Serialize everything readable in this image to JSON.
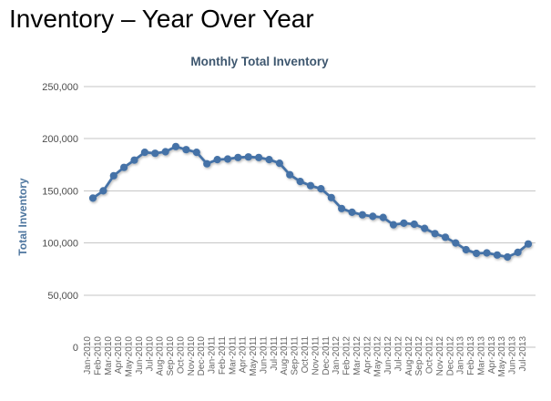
{
  "page": {
    "title": "Inventory – Year Over Year"
  },
  "chart_data": {
    "type": "line",
    "title": "Monthly Total Inventory",
    "xlabel": "",
    "ylabel": "Total Inventory",
    "series_name": "Total Inventory",
    "categories": [
      "Jan-2010",
      "Feb-2010",
      "Mar-2010",
      "Apr-2010",
      "May-2010",
      "Jun-2010",
      "Jul-2010",
      "Aug-2010",
      "Sep-2010",
      "Oct-2010",
      "Nov-2010",
      "Dec-2010",
      "Jan-2011",
      "Feb-2011",
      "Mar-2011",
      "Apr-2011",
      "May-2011",
      "Jun-2011",
      "Jul-2011",
      "Aug-2011",
      "Sep-2011",
      "Oct-2011",
      "Nov-2011",
      "Dec-2011",
      "Jan-2012",
      "Feb-2012",
      "Mar-2012",
      "Apr-2012",
      "May-2012",
      "Jun-2012",
      "Jul-2012",
      "Aug-2012",
      "Sep-2012",
      "Oct-2012",
      "Nov-2012",
      "Dec-2012",
      "Jan-2013",
      "Feb-2013",
      "Mar-2013",
      "Apr-2013",
      "May-2013",
      "Jun-2013",
      "Jul-2013"
    ],
    "values": [
      143000,
      150000,
      164500,
      172500,
      179500,
      187000,
      186000,
      187500,
      192500,
      189500,
      187000,
      176000,
      180000,
      180500,
      182000,
      182500,
      182000,
      180000,
      176500,
      165500,
      159000,
      155000,
      152000,
      143500,
      133000,
      129500,
      127000,
      125500,
      124500,
      117500,
      119000,
      118000,
      114000,
      109000,
      105500,
      100000,
      93500,
      90000,
      90500,
      88500,
      86500,
      91000,
      99000
    ],
    "ylim": [
      0,
      250000
    ],
    "ytick_interval": 50000,
    "ytick_labels": [
      "0",
      "50,000",
      "100,000",
      "150,000",
      "200,000",
      "250,000"
    ],
    "x_label_rotation": -90,
    "grid": true,
    "legend": false,
    "colors": {
      "series": "#4572A7",
      "chart_title": "#3E576F",
      "axis_title": "#4D759E",
      "y_tick_text": "#4d4d4d",
      "x_tick_text": "#666666",
      "gridline": "#C6C6C6",
      "axis_line": "#BFBFBF",
      "heading": "#000000"
    }
  }
}
